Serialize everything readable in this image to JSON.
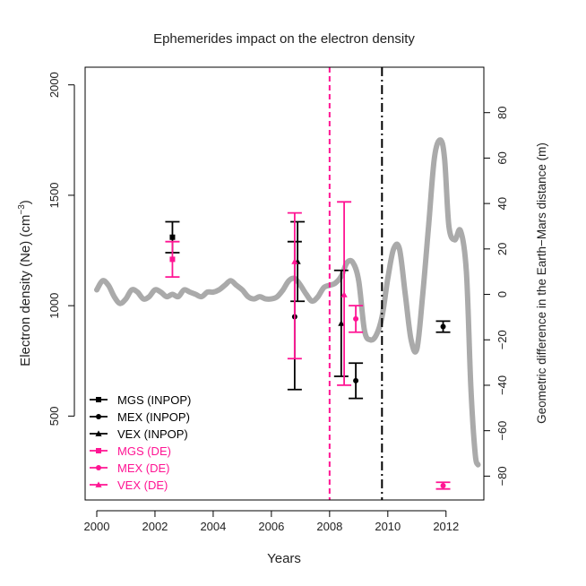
{
  "chart_data": {
    "type": "scatter",
    "title": "Ephemerides impact on the electron density",
    "xlabel": "Years",
    "ylabel_left": "Electron density (Ne) (cm",
    "ylabel_left_sup": "−3",
    "ylabel_left_close": ")",
    "ylabel_right": "Geometric difference in the Earth−Mars distance (m)",
    "xlim": [
      1999.6,
      2013.3
    ],
    "ylim_left": [
      120,
      2080
    ],
    "ylim_right": [
      -90.5,
      100
    ],
    "x_ticks": [
      2000,
      2002,
      2004,
      2006,
      2008,
      2010,
      2012
    ],
    "x_tick_labels": [
      "2000",
      "2002",
      "2004",
      "2006",
      "2008",
      "2010",
      "2012"
    ],
    "y_left_ticks": [
      500,
      1000,
      1500,
      2000
    ],
    "y_left_tick_labels": [
      "500",
      "1000",
      "1500",
      "2000"
    ],
    "y_right_ticks": [
      -80,
      -60,
      -40,
      -20,
      0,
      20,
      40,
      60,
      80
    ],
    "y_right_tick_labels": [
      "−80",
      "−60",
      "−40",
      "−20",
      "0",
      "20",
      "40",
      "60",
      "80"
    ],
    "vlines": [
      {
        "x": 2008.0,
        "style": "dashed",
        "color": "#ff1493"
      },
      {
        "x": 2009.8,
        "style": "dashdot",
        "color": "#000000"
      }
    ],
    "colors": {
      "inpop": "#000000",
      "de": "#ff1493",
      "curve": "#aaaaaa"
    },
    "legend": {
      "position": "bottom-left",
      "entries": [
        {
          "label": "MGS (INPOP)",
          "symbol": "square",
          "group": "inpop"
        },
        {
          "label": "MEX (INPOP)",
          "symbol": "circle",
          "group": "inpop"
        },
        {
          "label": "VEX (INPOP)",
          "symbol": "triangle",
          "group": "inpop"
        },
        {
          "label": "MGS (DE)",
          "symbol": "square",
          "group": "de"
        },
        {
          "label": "MEX (DE)",
          "symbol": "circle",
          "group": "de"
        },
        {
          "label": "VEX (DE)",
          "symbol": "triangle",
          "group": "de"
        }
      ]
    },
    "series": [
      {
        "name": "MGS (INPOP)",
        "group": "inpop",
        "symbol": "square",
        "points": [
          {
            "x": 2002.6,
            "y": 1310,
            "lo": 1240,
            "hi": 1380
          }
        ]
      },
      {
        "name": "MGS (DE)",
        "group": "de",
        "symbol": "square",
        "points": [
          {
            "x": 2002.6,
            "y": 1210,
            "lo": 1130,
            "hi": 1290
          }
        ]
      },
      {
        "name": "MEX (INPOP)",
        "group": "inpop",
        "symbol": "circle",
        "points": [
          {
            "x": 2006.8,
            "y": 950,
            "lo": 620,
            "hi": 1290
          },
          {
            "x": 2008.9,
            "y": 660,
            "lo": 580,
            "hi": 740
          },
          {
            "x": 2011.9,
            "y": 905,
            "lo": 880,
            "hi": 930
          }
        ]
      },
      {
        "name": "MEX (DE)",
        "group": "de",
        "symbol": "circle",
        "points": [
          {
            "x": 2008.9,
            "y": 940,
            "lo": 880,
            "hi": 1000
          },
          {
            "x": 2011.9,
            "y": 185,
            "lo": 170,
            "hi": 200
          }
        ]
      },
      {
        "name": "VEX (INPOP)",
        "group": "inpop",
        "symbol": "triangle",
        "points": [
          {
            "x": 2006.9,
            "y": 1200,
            "lo": 1020,
            "hi": 1380
          },
          {
            "x": 2008.4,
            "y": 920,
            "lo": 680,
            "hi": 1160
          }
        ]
      },
      {
        "name": "VEX (DE)",
        "group": "de",
        "symbol": "triangle",
        "points": [
          {
            "x": 2006.8,
            "y": 1200,
            "lo": 760,
            "hi": 1420
          },
          {
            "x": 2008.5,
            "y": 1050,
            "lo": 640,
            "hi": 1470
          }
        ]
      }
    ],
    "curve": {
      "name": "Geometric difference in the Earth−Mars distance",
      "axis": "right",
      "x": [
        2000.0,
        2000.2,
        2000.4,
        2000.6,
        2000.8,
        2001.0,
        2001.2,
        2001.4,
        2001.6,
        2001.8,
        2002.0,
        2002.2,
        2002.4,
        2002.6,
        2002.8,
        2003.0,
        2003.2,
        2003.4,
        2003.6,
        2003.8,
        2004.0,
        2004.2,
        2004.4,
        2004.6,
        2004.8,
        2005.0,
        2005.2,
        2005.4,
        2005.6,
        2005.8,
        2006.0,
        2006.2,
        2006.4,
        2006.6,
        2006.8,
        2007.0,
        2007.2,
        2007.4,
        2007.6,
        2007.8,
        2008.0,
        2008.2,
        2008.4,
        2008.6,
        2008.8,
        2009.0,
        2009.2,
        2009.4,
        2009.6,
        2009.8,
        2010.0,
        2010.2,
        2010.4,
        2010.6,
        2010.8,
        2011.0,
        2011.2,
        2011.4,
        2011.6,
        2011.8,
        2011.95,
        2012.1,
        2012.3,
        2012.5,
        2012.7,
        2012.85,
        2013.0,
        2013.1
      ],
      "y": [
        2,
        6,
        4,
        -1,
        -4,
        -2,
        2,
        1,
        -2,
        -1,
        2,
        1,
        -1,
        0,
        -1,
        2,
        1,
        0,
        -1,
        1,
        1,
        2,
        4,
        6,
        4,
        2,
        -1,
        -2,
        -1,
        -2,
        -2,
        -1,
        2,
        6,
        7,
        4,
        0,
        -3,
        -1,
        3,
        4,
        5,
        8,
        14,
        14,
        6,
        -16,
        -20,
        -18,
        -10,
        7,
        20,
        20,
        0,
        -20,
        -24,
        0,
        30,
        60,
        68,
        60,
        30,
        24,
        28,
        10,
        -40,
        -70,
        -75
      ]
    }
  }
}
